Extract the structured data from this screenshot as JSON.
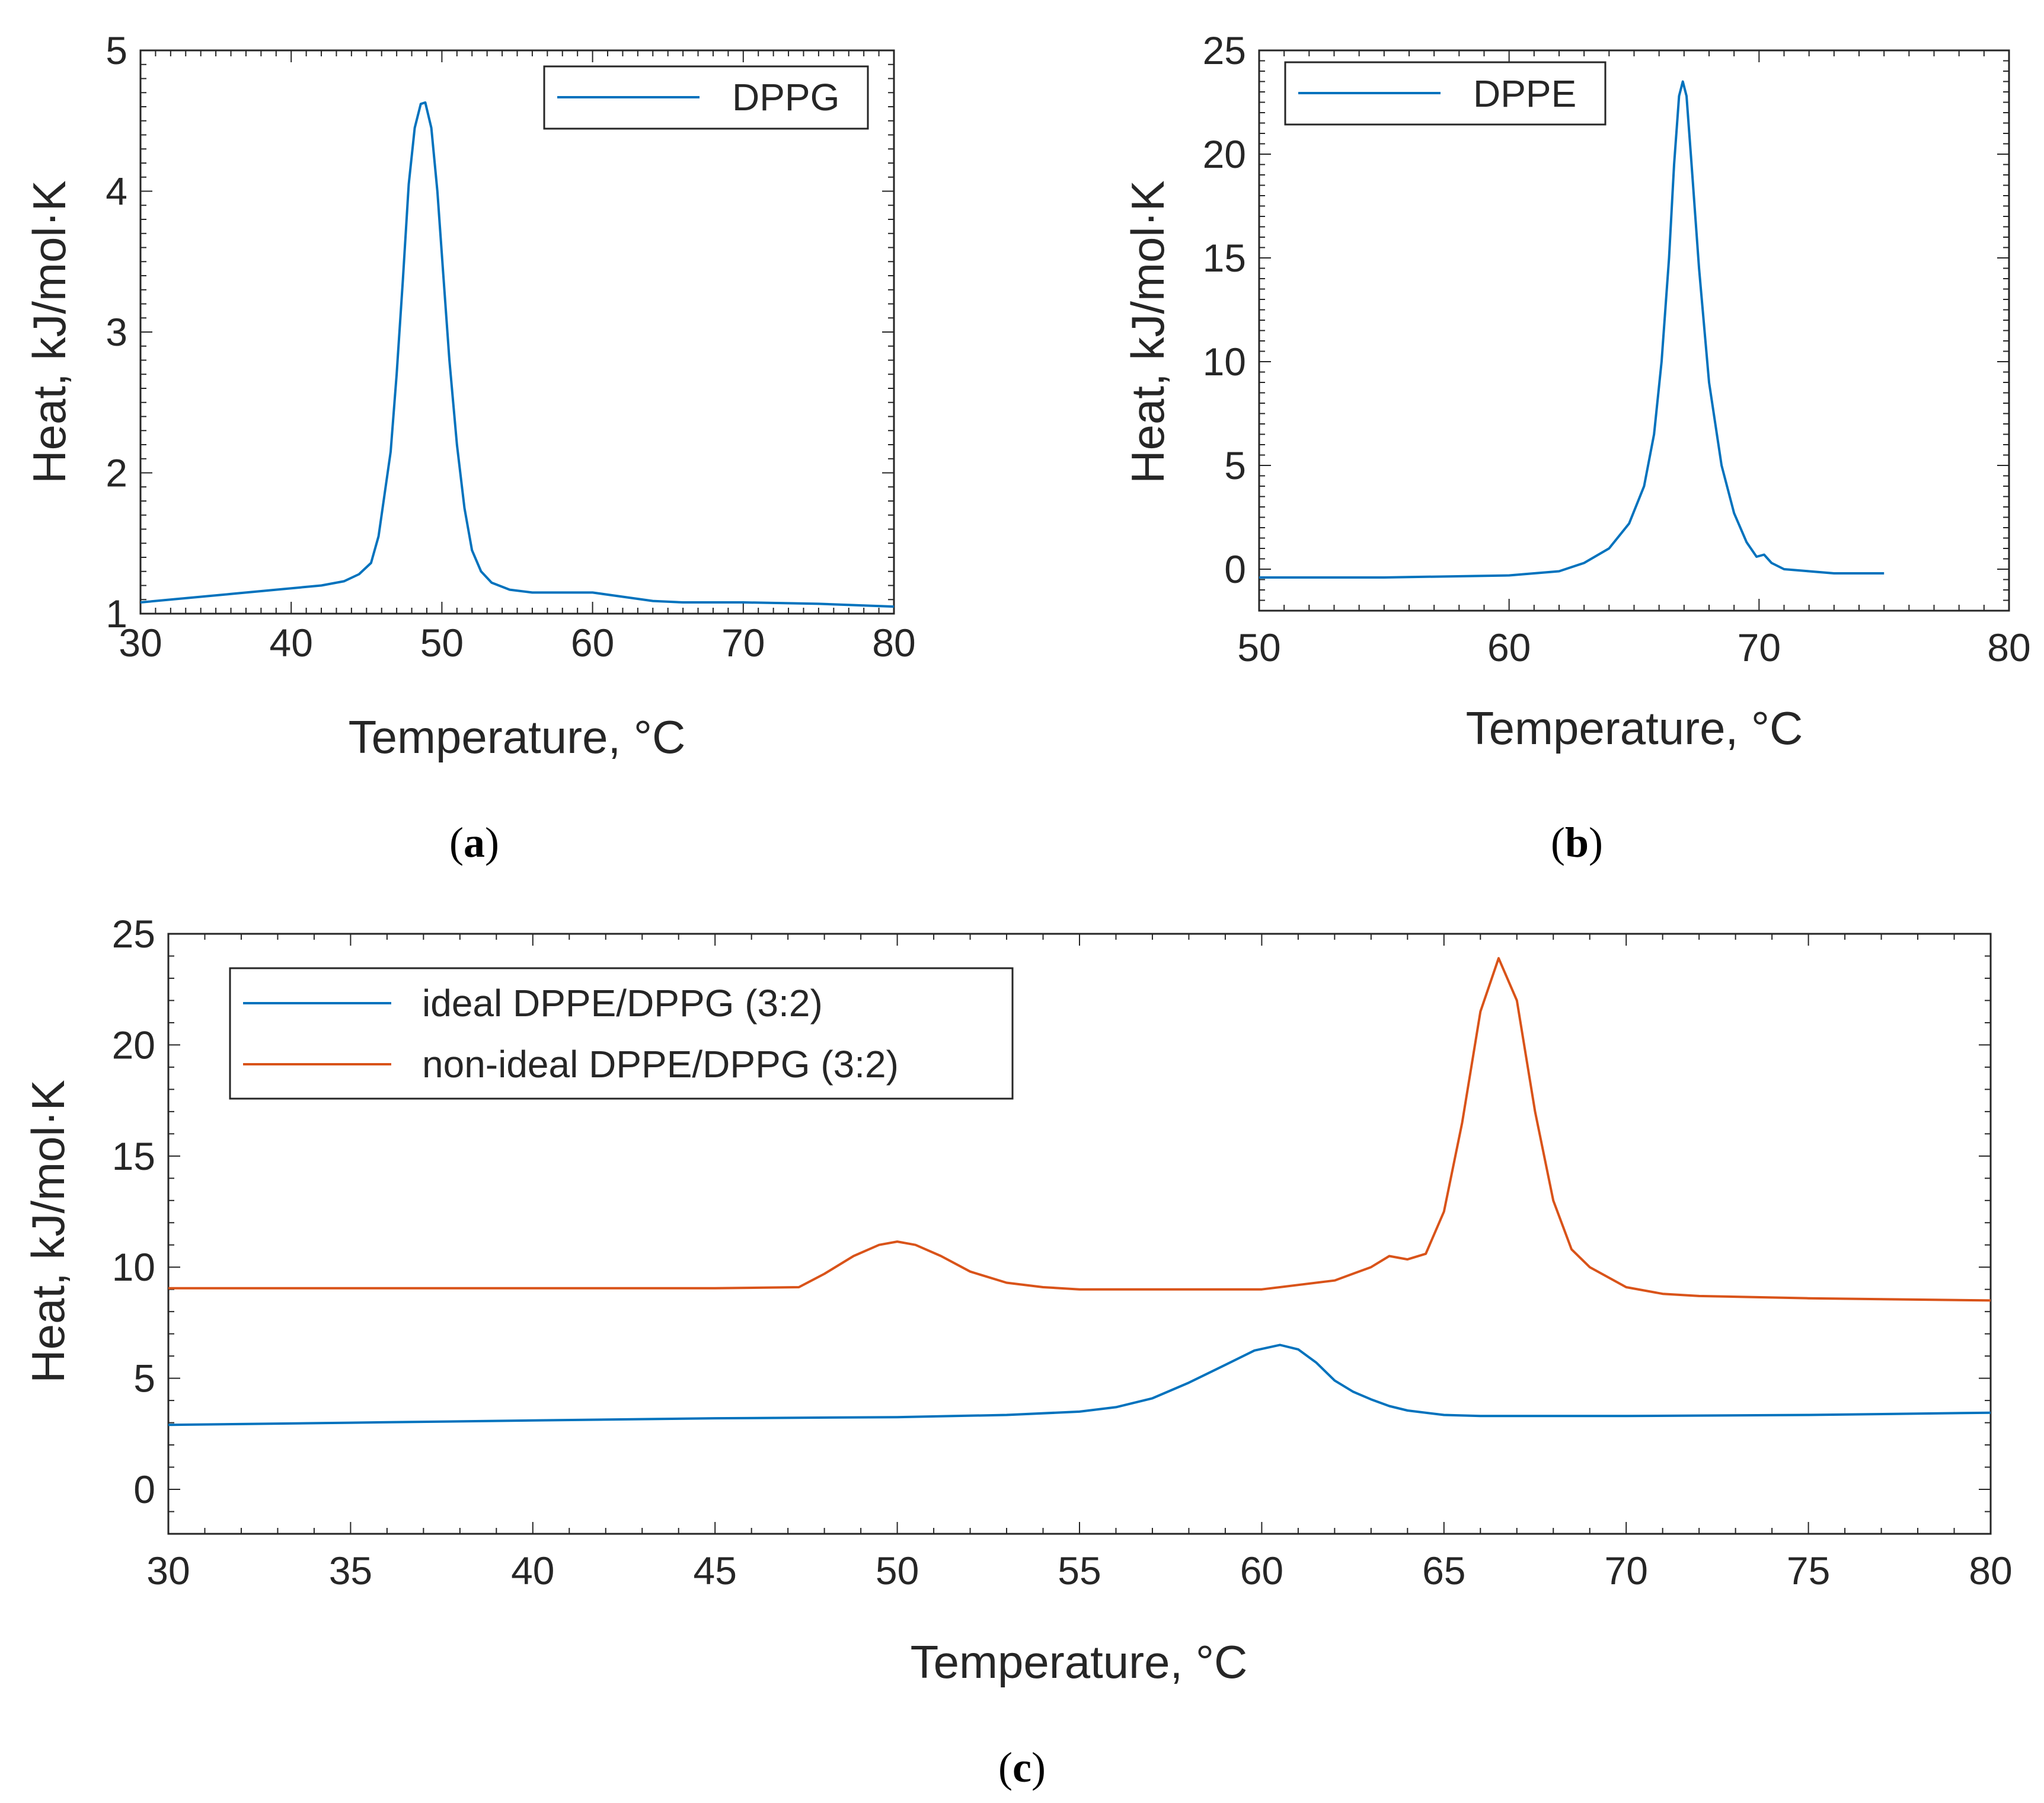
{
  "chart_data": [
    {
      "id": "a",
      "type": "line",
      "caption": "a",
      "xlabel": "Temperature, °C",
      "ylabel": "Heat, kJ/mol·K",
      "xlim": [
        30,
        80
      ],
      "ylim": [
        1,
        5
      ],
      "xticks": [
        30,
        40,
        50,
        60,
        70,
        80
      ],
      "yticks": [
        1,
        2,
        3,
        4,
        5
      ],
      "legend_position": "top-right",
      "series": [
        {
          "name": "DPPG",
          "color": "#0072BD",
          "x": [
            30,
            33,
            36,
            39,
            42,
            43.5,
            44.5,
            45.3,
            45.8,
            46.2,
            46.6,
            47.0,
            47.4,
            47.8,
            48.2,
            48.6,
            48.9,
            49.3,
            49.7,
            50.1,
            50.5,
            51.0,
            51.5,
            52.0,
            52.6,
            53.3,
            54.5,
            56,
            58,
            60,
            62,
            64,
            66,
            70,
            75,
            80
          ],
          "y": [
            1.08,
            1.11,
            1.14,
            1.17,
            1.2,
            1.23,
            1.28,
            1.36,
            1.55,
            1.85,
            2.15,
            2.7,
            3.35,
            4.05,
            4.45,
            4.62,
            4.63,
            4.45,
            4.0,
            3.4,
            2.8,
            2.2,
            1.75,
            1.45,
            1.3,
            1.22,
            1.17,
            1.15,
            1.15,
            1.15,
            1.12,
            1.09,
            1.08,
            1.08,
            1.07,
            1.05
          ]
        }
      ]
    },
    {
      "id": "b",
      "type": "line",
      "caption": "b",
      "xlabel": "Temperature, °C",
      "ylabel": "Heat, kJ/mol·K",
      "xlim": [
        50,
        80
      ],
      "ylim": [
        -2,
        25
      ],
      "xticks": [
        50,
        60,
        70,
        80
      ],
      "yticks": [
        0,
        5,
        10,
        15,
        20,
        25
      ],
      "legend_position": "top-left",
      "series": [
        {
          "name": "DPPE",
          "color": "#0072BD",
          "x": [
            50,
            55,
            60,
            62,
            63,
            64,
            64.8,
            65.4,
            65.8,
            66.1,
            66.4,
            66.6,
            66.8,
            66.95,
            67.1,
            67.3,
            67.6,
            68.0,
            68.5,
            69.0,
            69.5,
            69.9,
            70.2,
            70.5,
            71,
            72,
            73,
            75
          ],
          "y": [
            -0.4,
            -0.4,
            -0.3,
            -0.1,
            0.3,
            1.0,
            2.2,
            4.0,
            6.5,
            10.0,
            15.0,
            19.5,
            22.8,
            23.5,
            22.8,
            19.5,
            14.5,
            9.0,
            5.0,
            2.7,
            1.3,
            0.6,
            0.7,
            0.3,
            0.0,
            -0.1,
            -0.2,
            -0.2
          ]
        }
      ]
    },
    {
      "id": "c",
      "type": "line",
      "caption": "c",
      "xlabel": "Temperature, °C",
      "ylabel": "Heat, kJ/mol·K",
      "xlim": [
        30,
        80
      ],
      "ylim": [
        -2,
        25
      ],
      "xticks": [
        30,
        35,
        40,
        45,
        50,
        55,
        60,
        65,
        70,
        75,
        80
      ],
      "yticks": [
        0,
        5,
        10,
        15,
        20,
        25
      ],
      "legend_position": "top-left",
      "series": [
        {
          "name": "ideal DPPE/DPPG (3:2)",
          "color": "#0072BD",
          "x": [
            30,
            35,
            40,
            45,
            50,
            53,
            55,
            56,
            57,
            58,
            59,
            59.8,
            60.5,
            61.0,
            61.5,
            62.0,
            62.5,
            63.0,
            63.5,
            64,
            65,
            66,
            67,
            70,
            75,
            80
          ],
          "y": [
            2.9,
            3.0,
            3.1,
            3.2,
            3.25,
            3.35,
            3.5,
            3.7,
            4.1,
            4.8,
            5.6,
            6.25,
            6.5,
            6.3,
            5.7,
            4.9,
            4.4,
            4.05,
            3.75,
            3.55,
            3.35,
            3.3,
            3.3,
            3.3,
            3.35,
            3.45
          ]
        },
        {
          "name": "non-ideal DPPE/DPPG (3:2)",
          "color": "#D95319",
          "x": [
            30,
            35,
            40,
            45,
            47.3,
            48,
            48.8,
            49.5,
            50.0,
            50.5,
            51.2,
            52,
            53,
            54,
            55,
            57,
            60,
            62,
            63,
            63.5,
            64.0,
            64.5,
            65.0,
            65.5,
            66.0,
            66.5,
            67.0,
            67.5,
            68.0,
            68.5,
            69,
            70,
            71,
            72,
            75,
            80
          ],
          "y": [
            9.05,
            9.05,
            9.05,
            9.05,
            9.1,
            9.7,
            10.5,
            11.0,
            11.15,
            11.0,
            10.5,
            9.8,
            9.3,
            9.1,
            9.0,
            9.0,
            9.0,
            9.4,
            10.0,
            10.5,
            10.35,
            10.6,
            12.5,
            16.5,
            21.5,
            23.9,
            22.0,
            17.0,
            13.0,
            10.8,
            10.0,
            9.1,
            8.8,
            8.7,
            8.6,
            8.5
          ]
        }
      ]
    }
  ]
}
